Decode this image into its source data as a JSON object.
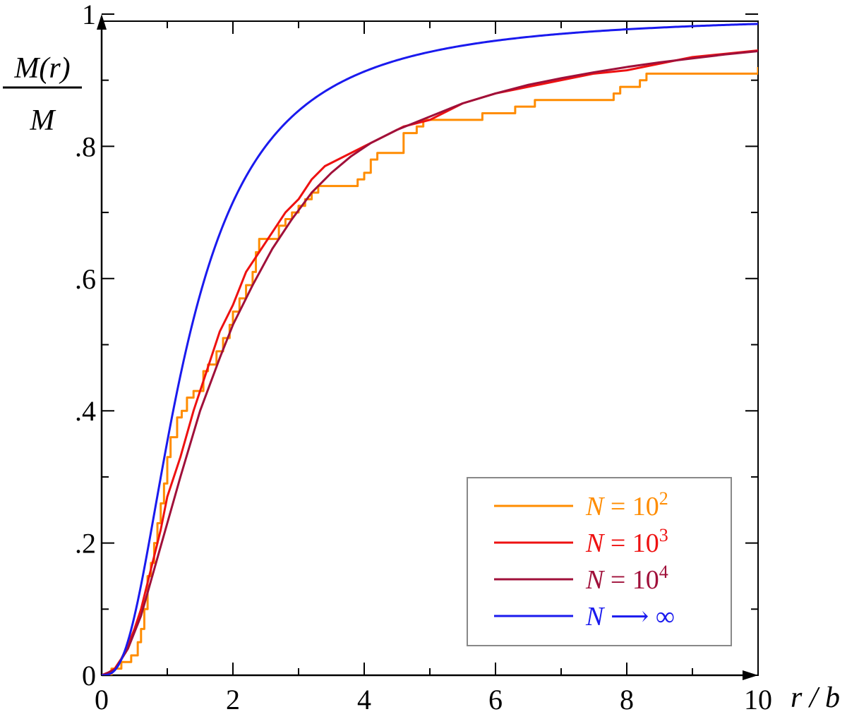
{
  "chart_data": {
    "type": "line",
    "xlim": [
      0,
      10
    ],
    "ylim": [
      0,
      1
    ],
    "x_ticks": [
      0,
      2,
      4,
      6,
      8,
      10
    ],
    "x_tick_labels": [
      "0",
      "2",
      "4",
      "6",
      "8",
      "10"
    ],
    "y_ticks": [
      0,
      0.2,
      0.4,
      0.6,
      0.8,
      1
    ],
    "y_tick_labels": [
      "0",
      ".2",
      ".4",
      ".6",
      ".8",
      "1"
    ],
    "xlabel": "r / b",
    "ylabel_numerator": "M(r)",
    "ylabel_denominator": "M",
    "grid": false,
    "legend_position": "bottom-right",
    "series": [
      {
        "name": "N = 10^2",
        "label_base": "N = 10",
        "label_exp": "2",
        "color": "#ff8c00",
        "style": "step",
        "points": [
          [
            0,
            0
          ],
          [
            0.15,
            0
          ],
          [
            0.15,
            0.01
          ],
          [
            0.3,
            0.01
          ],
          [
            0.3,
            0.02
          ],
          [
            0.45,
            0.02
          ],
          [
            0.45,
            0.03
          ],
          [
            0.55,
            0.03
          ],
          [
            0.55,
            0.05
          ],
          [
            0.6,
            0.05
          ],
          [
            0.6,
            0.07
          ],
          [
            0.65,
            0.07
          ],
          [
            0.65,
            0.1
          ],
          [
            0.7,
            0.1
          ],
          [
            0.7,
            0.15
          ],
          [
            0.75,
            0.15
          ],
          [
            0.75,
            0.17
          ],
          [
            0.8,
            0.17
          ],
          [
            0.8,
            0.2
          ],
          [
            0.85,
            0.2
          ],
          [
            0.85,
            0.23
          ],
          [
            0.9,
            0.23
          ],
          [
            0.9,
            0.26
          ],
          [
            0.95,
            0.26
          ],
          [
            0.95,
            0.29
          ],
          [
            1.0,
            0.29
          ],
          [
            1.0,
            0.33
          ],
          [
            1.05,
            0.33
          ],
          [
            1.05,
            0.36
          ],
          [
            1.15,
            0.36
          ],
          [
            1.15,
            0.39
          ],
          [
            1.22,
            0.39
          ],
          [
            1.22,
            0.4
          ],
          [
            1.3,
            0.4
          ],
          [
            1.3,
            0.42
          ],
          [
            1.4,
            0.42
          ],
          [
            1.4,
            0.43
          ],
          [
            1.55,
            0.43
          ],
          [
            1.55,
            0.46
          ],
          [
            1.62,
            0.46
          ],
          [
            1.62,
            0.47
          ],
          [
            1.75,
            0.47
          ],
          [
            1.75,
            0.49
          ],
          [
            1.85,
            0.49
          ],
          [
            1.85,
            0.51
          ],
          [
            1.95,
            0.51
          ],
          [
            1.95,
            0.53
          ],
          [
            2.0,
            0.53
          ],
          [
            2.0,
            0.55
          ],
          [
            2.1,
            0.55
          ],
          [
            2.1,
            0.57
          ],
          [
            2.2,
            0.57
          ],
          [
            2.2,
            0.59
          ],
          [
            2.3,
            0.59
          ],
          [
            2.3,
            0.61
          ],
          [
            2.35,
            0.61
          ],
          [
            2.35,
            0.64
          ],
          [
            2.4,
            0.64
          ],
          [
            2.4,
            0.66
          ],
          [
            2.7,
            0.66
          ],
          [
            2.7,
            0.68
          ],
          [
            2.8,
            0.68
          ],
          [
            2.8,
            0.69
          ],
          [
            2.9,
            0.69
          ],
          [
            2.9,
            0.7
          ],
          [
            3.0,
            0.7
          ],
          [
            3.0,
            0.71
          ],
          [
            3.1,
            0.71
          ],
          [
            3.1,
            0.72
          ],
          [
            3.2,
            0.72
          ],
          [
            3.2,
            0.73
          ],
          [
            3.3,
            0.73
          ],
          [
            3.3,
            0.74
          ],
          [
            3.9,
            0.74
          ],
          [
            3.9,
            0.75
          ],
          [
            4.0,
            0.75
          ],
          [
            4.0,
            0.76
          ],
          [
            4.1,
            0.76
          ],
          [
            4.1,
            0.78
          ],
          [
            4.2,
            0.78
          ],
          [
            4.2,
            0.79
          ],
          [
            4.6,
            0.79
          ],
          [
            4.6,
            0.82
          ],
          [
            4.8,
            0.82
          ],
          [
            4.8,
            0.83
          ],
          [
            4.9,
            0.83
          ],
          [
            4.9,
            0.84
          ],
          [
            5.8,
            0.84
          ],
          [
            5.8,
            0.85
          ],
          [
            6.3,
            0.85
          ],
          [
            6.3,
            0.86
          ],
          [
            6.6,
            0.86
          ],
          [
            6.6,
            0.87
          ],
          [
            7.8,
            0.87
          ],
          [
            7.8,
            0.88
          ],
          [
            7.9,
            0.88
          ],
          [
            7.9,
            0.89
          ],
          [
            8.2,
            0.89
          ],
          [
            8.2,
            0.9
          ],
          [
            8.3,
            0.9
          ],
          [
            8.3,
            0.91
          ],
          [
            10,
            0.91
          ],
          [
            10,
            0.92
          ]
        ]
      },
      {
        "name": "N = 10^3",
        "label_base": "N = 10",
        "label_exp": "3",
        "color": "#ee1111",
        "style": "line",
        "points": [
          [
            0,
            0
          ],
          [
            0.1,
            0.004
          ],
          [
            0.2,
            0.01
          ],
          [
            0.3,
            0.025
          ],
          [
            0.4,
            0.045
          ],
          [
            0.5,
            0.07
          ],
          [
            0.6,
            0.1
          ],
          [
            0.7,
            0.14
          ],
          [
            0.8,
            0.18
          ],
          [
            0.9,
            0.22
          ],
          [
            1.0,
            0.27
          ],
          [
            1.2,
            0.33
          ],
          [
            1.4,
            0.4
          ],
          [
            1.6,
            0.46
          ],
          [
            1.8,
            0.52
          ],
          [
            2.0,
            0.56
          ],
          [
            2.2,
            0.61
          ],
          [
            2.4,
            0.64
          ],
          [
            2.6,
            0.67
          ],
          [
            2.8,
            0.7
          ],
          [
            3.0,
            0.72
          ],
          [
            3.2,
            0.75
          ],
          [
            3.4,
            0.77
          ],
          [
            3.6,
            0.78
          ],
          [
            3.8,
            0.79
          ],
          [
            4.0,
            0.8
          ],
          [
            4.2,
            0.81
          ],
          [
            4.4,
            0.82
          ],
          [
            4.6,
            0.83
          ],
          [
            5.0,
            0.84
          ],
          [
            5.5,
            0.865
          ],
          [
            6.0,
            0.88
          ],
          [
            6.5,
            0.89
          ],
          [
            7.0,
            0.9
          ],
          [
            7.5,
            0.91
          ],
          [
            8.0,
            0.915
          ],
          [
            8.5,
            0.925
          ],
          [
            9.0,
            0.935
          ],
          [
            9.5,
            0.94
          ],
          [
            10,
            0.945
          ]
        ]
      },
      {
        "name": "N = 10^4",
        "label_base": "N = 10",
        "label_exp": "4",
        "color": "#a0103a",
        "style": "line",
        "points": [
          [
            0,
            0
          ],
          [
            0.2,
            0.008
          ],
          [
            0.4,
            0.04
          ],
          [
            0.6,
            0.09
          ],
          [
            0.8,
            0.16
          ],
          [
            1.0,
            0.23
          ],
          [
            1.2,
            0.3
          ],
          [
            1.5,
            0.4
          ],
          [
            1.8,
            0.48
          ],
          [
            2.0,
            0.53
          ],
          [
            2.3,
            0.59
          ],
          [
            2.6,
            0.645
          ],
          [
            2.9,
            0.69
          ],
          [
            3.2,
            0.73
          ],
          [
            3.5,
            0.76
          ],
          [
            3.8,
            0.785
          ],
          [
            4.1,
            0.805
          ],
          [
            4.5,
            0.825
          ],
          [
            5.0,
            0.845
          ],
          [
            5.5,
            0.865
          ],
          [
            6.0,
            0.88
          ],
          [
            6.5,
            0.893
          ],
          [
            7.0,
            0.903
          ],
          [
            7.5,
            0.912
          ],
          [
            8.0,
            0.92
          ],
          [
            8.5,
            0.927
          ],
          [
            9.0,
            0.933
          ],
          [
            9.5,
            0.939
          ],
          [
            10,
            0.944
          ]
        ]
      },
      {
        "name": "N → ∞",
        "label_base": "N ⟶ ∞",
        "label_exp": "",
        "color": "#1a1aee",
        "style": "plummer",
        "points": []
      }
    ]
  }
}
